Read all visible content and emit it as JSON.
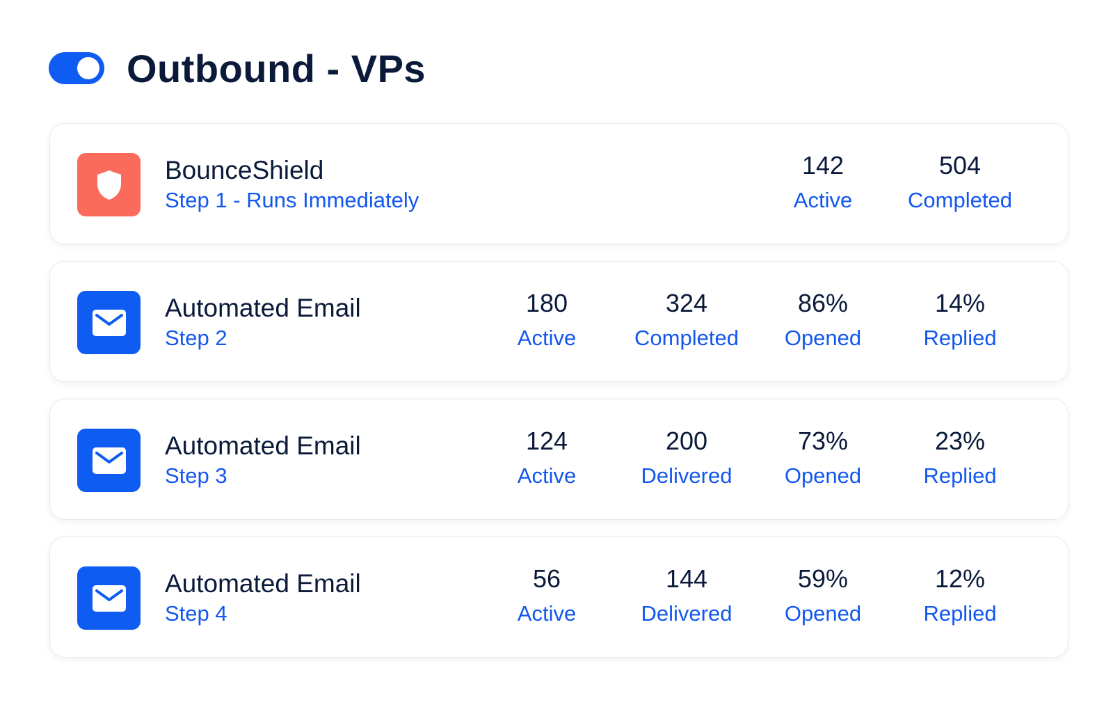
{
  "header": {
    "title": "Outbound - VPs",
    "toggle_state": "on"
  },
  "colors": {
    "accent": "#0f5cf2",
    "bounce_tile": "#fb6b5b",
    "text_dark": "#0b1a3a",
    "link_blue": "#1257ee"
  },
  "steps": [
    {
      "icon": "shield-icon",
      "name": "BounceShield",
      "step": "Step 1 - Runs Immediately",
      "stats": [
        {
          "value": "142",
          "label": "Active"
        },
        {
          "value": "504",
          "label": "Completed"
        }
      ]
    },
    {
      "icon": "mail-icon",
      "name": "Automated Email",
      "step": "Step 2",
      "stats": [
        {
          "value": "180",
          "label": "Active"
        },
        {
          "value": "324",
          "label": "Completed"
        },
        {
          "value": "86%",
          "label": "Opened"
        },
        {
          "value": "14%",
          "label": "Replied"
        }
      ]
    },
    {
      "icon": "mail-icon",
      "name": "Automated Email",
      "step": "Step 3",
      "stats": [
        {
          "value": "124",
          "label": "Active"
        },
        {
          "value": "200",
          "label": "Delivered"
        },
        {
          "value": "73%",
          "label": "Opened"
        },
        {
          "value": "23%",
          "label": "Replied"
        }
      ]
    },
    {
      "icon": "mail-icon",
      "name": "Automated Email",
      "step": "Step 4",
      "stats": [
        {
          "value": "56",
          "label": "Active"
        },
        {
          "value": "144",
          "label": "Delivered"
        },
        {
          "value": "59%",
          "label": "Opened"
        },
        {
          "value": "12%",
          "label": "Replied"
        }
      ]
    }
  ]
}
